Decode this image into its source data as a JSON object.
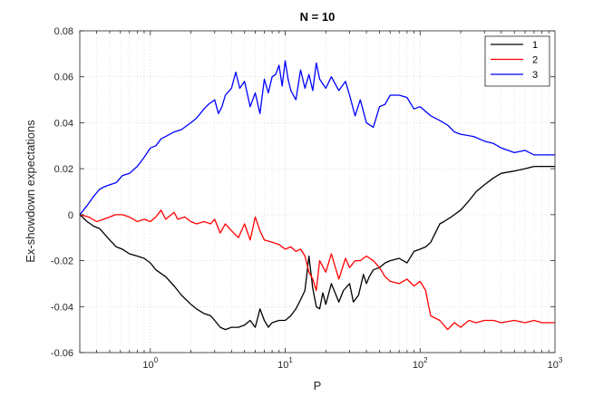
{
  "chart_data": {
    "type": "line",
    "title": "N = 10",
    "xlabel": "P",
    "ylabel": "Ex-showdown expectations",
    "xscale": "log",
    "xlim": [
      0.3,
      1000
    ],
    "ylim": [
      -0.06,
      0.08
    ],
    "xticks": [
      {
        "value": 1,
        "base": "10",
        "exp": "0"
      },
      {
        "value": 10,
        "base": "10",
        "exp": "1"
      },
      {
        "value": 100,
        "base": "10",
        "exp": "2"
      },
      {
        "value": 1000,
        "base": "10",
        "exp": "3"
      }
    ],
    "yticks": [
      {
        "value": -0.06,
        "label": "-0.06"
      },
      {
        "value": -0.04,
        "label": "-0.04"
      },
      {
        "value": -0.02,
        "label": "-0.02"
      },
      {
        "value": 0,
        "label": "0"
      },
      {
        "value": 0.02,
        "label": "0.02"
      },
      {
        "value": 0.04,
        "label": "0.04"
      },
      {
        "value": 0.06,
        "label": "0.06"
      },
      {
        "value": 0.08,
        "label": "0.08"
      }
    ],
    "grid": true,
    "legend_position": "top-right",
    "series": [
      {
        "name": "1",
        "color": "#000000",
        "points": [
          [
            0.3,
            0.0
          ],
          [
            0.34,
            -0.003
          ],
          [
            0.38,
            -0.005
          ],
          [
            0.42,
            -0.006
          ],
          [
            0.45,
            -0.008
          ],
          [
            0.5,
            -0.011
          ],
          [
            0.56,
            -0.014
          ],
          [
            0.62,
            -0.015
          ],
          [
            0.7,
            -0.017
          ],
          [
            0.8,
            -0.018
          ],
          [
            0.9,
            -0.019
          ],
          [
            1.0,
            -0.021
          ],
          [
            1.1,
            -0.024
          ],
          [
            1.3,
            -0.027
          ],
          [
            1.5,
            -0.031
          ],
          [
            1.7,
            -0.035
          ],
          [
            2.0,
            -0.039
          ],
          [
            2.2,
            -0.041
          ],
          [
            2.5,
            -0.043
          ],
          [
            2.8,
            -0.044
          ],
          [
            3.0,
            -0.046
          ],
          [
            3.3,
            -0.049
          ],
          [
            3.6,
            -0.05
          ],
          [
            4.0,
            -0.049
          ],
          [
            4.5,
            -0.049
          ],
          [
            5.0,
            -0.048
          ],
          [
            5.5,
            -0.046
          ],
          [
            6.0,
            -0.049
          ],
          [
            6.5,
            -0.041
          ],
          [
            7.0,
            -0.046
          ],
          [
            7.5,
            -0.049
          ],
          [
            8.0,
            -0.047
          ],
          [
            9.0,
            -0.046
          ],
          [
            10.0,
            -0.046
          ],
          [
            11.0,
            -0.044
          ],
          [
            12.0,
            -0.041
          ],
          [
            13.0,
            -0.037
          ],
          [
            14.0,
            -0.033
          ],
          [
            15.0,
            -0.018
          ],
          [
            16.0,
            -0.032
          ],
          [
            17.0,
            -0.04
          ],
          [
            18.0,
            -0.041
          ],
          [
            19.0,
            -0.034
          ],
          [
            20.0,
            -0.039
          ],
          [
            22.0,
            -0.03
          ],
          [
            25.0,
            -0.038
          ],
          [
            27.0,
            -0.033
          ],
          [
            30.0,
            -0.03
          ],
          [
            32.0,
            -0.038
          ],
          [
            35.0,
            -0.035
          ],
          [
            38.0,
            -0.026
          ],
          [
            40.0,
            -0.03
          ],
          [
            42.0,
            -0.027
          ],
          [
            45.0,
            -0.024
          ],
          [
            50.0,
            -0.023
          ],
          [
            55.0,
            -0.021
          ],
          [
            60.0,
            -0.02
          ],
          [
            70.0,
            -0.019
          ],
          [
            80.0,
            -0.021
          ],
          [
            90.0,
            -0.016
          ],
          [
            100.0,
            -0.015
          ],
          [
            110.0,
            -0.014
          ],
          [
            120.0,
            -0.012
          ],
          [
            140.0,
            -0.004
          ],
          [
            150.0,
            -0.003
          ],
          [
            170.0,
            -0.001
          ],
          [
            200.0,
            0.002
          ],
          [
            230.0,
            0.006
          ],
          [
            260.0,
            0.01
          ],
          [
            300.0,
            0.013
          ],
          [
            350.0,
            0.016
          ],
          [
            400.0,
            0.018
          ],
          [
            500.0,
            0.019
          ],
          [
            600.0,
            0.02
          ],
          [
            700.0,
            0.021
          ],
          [
            850.0,
            0.021
          ],
          [
            1000.0,
            0.021
          ]
        ]
      },
      {
        "name": "2",
        "color": "#ff0000",
        "points": [
          [
            0.3,
            0.0
          ],
          [
            0.35,
            -0.001
          ],
          [
            0.4,
            -0.003
          ],
          [
            0.45,
            -0.002
          ],
          [
            0.5,
            -0.001
          ],
          [
            0.55,
            0.0
          ],
          [
            0.62,
            0.0
          ],
          [
            0.7,
            -0.001
          ],
          [
            0.8,
            -0.003
          ],
          [
            0.9,
            -0.002
          ],
          [
            1.0,
            -0.003
          ],
          [
            1.1,
            -0.001
          ],
          [
            1.2,
            0.002
          ],
          [
            1.3,
            -0.002
          ],
          [
            1.5,
            0.001
          ],
          [
            1.6,
            -0.002
          ],
          [
            1.8,
            -0.001
          ],
          [
            2.0,
            -0.003
          ],
          [
            2.2,
            -0.004
          ],
          [
            2.5,
            -0.003
          ],
          [
            2.8,
            -0.004
          ],
          [
            3.0,
            -0.002
          ],
          [
            3.3,
            -0.008
          ],
          [
            3.6,
            -0.004
          ],
          [
            4.0,
            -0.007
          ],
          [
            4.5,
            -0.01
          ],
          [
            5.0,
            -0.004
          ],
          [
            5.5,
            -0.011
          ],
          [
            6.0,
            -0.001
          ],
          [
            6.5,
            -0.007
          ],
          [
            7.0,
            -0.011
          ],
          [
            8.0,
            -0.012
          ],
          [
            9.0,
            -0.013
          ],
          [
            10.0,
            -0.015
          ],
          [
            11.0,
            -0.014
          ],
          [
            12.0,
            -0.016
          ],
          [
            13.0,
            -0.015
          ],
          [
            14.0,
            -0.018
          ],
          [
            15.0,
            -0.025
          ],
          [
            16.0,
            -0.028
          ],
          [
            17.0,
            -0.033
          ],
          [
            18.0,
            -0.02
          ],
          [
            20.0,
            -0.025
          ],
          [
            22.0,
            -0.017
          ],
          [
            25.0,
            -0.028
          ],
          [
            28.0,
            -0.019
          ],
          [
            30.0,
            -0.023
          ],
          [
            33.0,
            -0.02
          ],
          [
            36.0,
            -0.02
          ],
          [
            40.0,
            -0.018
          ],
          [
            45.0,
            -0.02
          ],
          [
            50.0,
            -0.023
          ],
          [
            55.0,
            -0.027
          ],
          [
            60.0,
            -0.029
          ],
          [
            70.0,
            -0.03
          ],
          [
            80.0,
            -0.028
          ],
          [
            90.0,
            -0.031
          ],
          [
            100.0,
            -0.029
          ],
          [
            110.0,
            -0.033
          ],
          [
            115.0,
            -0.039
          ],
          [
            120.0,
            -0.044
          ],
          [
            140.0,
            -0.046
          ],
          [
            160.0,
            -0.05
          ],
          [
            180.0,
            -0.047
          ],
          [
            200.0,
            -0.049
          ],
          [
            230.0,
            -0.046
          ],
          [
            260.0,
            -0.047
          ],
          [
            300.0,
            -0.046
          ],
          [
            350.0,
            -0.046
          ],
          [
            400.0,
            -0.047
          ],
          [
            500.0,
            -0.046
          ],
          [
            600.0,
            -0.047
          ],
          [
            700.0,
            -0.046
          ],
          [
            800.0,
            -0.047
          ],
          [
            1000.0,
            -0.047
          ]
        ]
      },
      {
        "name": "3",
        "color": "#0000ff",
        "points": [
          [
            0.3,
            0.0
          ],
          [
            0.34,
            0.004
          ],
          [
            0.38,
            0.008
          ],
          [
            0.42,
            0.011
          ],
          [
            0.45,
            0.012
          ],
          [
            0.5,
            0.013
          ],
          [
            0.56,
            0.014
          ],
          [
            0.62,
            0.017
          ],
          [
            0.7,
            0.018
          ],
          [
            0.8,
            0.021
          ],
          [
            0.9,
            0.025
          ],
          [
            1.0,
            0.029
          ],
          [
            1.1,
            0.03
          ],
          [
            1.2,
            0.033
          ],
          [
            1.3,
            0.034
          ],
          [
            1.5,
            0.036
          ],
          [
            1.7,
            0.037
          ],
          [
            2.0,
            0.04
          ],
          [
            2.2,
            0.042
          ],
          [
            2.5,
            0.046
          ],
          [
            2.7,
            0.048
          ],
          [
            3.0,
            0.05
          ],
          [
            3.2,
            0.044
          ],
          [
            3.4,
            0.047
          ],
          [
            3.6,
            0.052
          ],
          [
            4.0,
            0.055
          ],
          [
            4.3,
            0.062
          ],
          [
            4.6,
            0.055
          ],
          [
            5.0,
            0.058
          ],
          [
            5.5,
            0.047
          ],
          [
            6.0,
            0.053
          ],
          [
            6.5,
            0.044
          ],
          [
            7.0,
            0.059
          ],
          [
            7.5,
            0.053
          ],
          [
            8.0,
            0.06
          ],
          [
            8.5,
            0.061
          ],
          [
            9.0,
            0.065
          ],
          [
            9.5,
            0.056
          ],
          [
            10.0,
            0.067
          ],
          [
            10.5,
            0.059
          ],
          [
            11.0,
            0.054
          ],
          [
            12.0,
            0.05
          ],
          [
            13.0,
            0.063
          ],
          [
            14.0,
            0.055
          ],
          [
            15.0,
            0.061
          ],
          [
            16.0,
            0.054
          ],
          [
            17.0,
            0.066
          ],
          [
            18.0,
            0.059
          ],
          [
            20.0,
            0.055
          ],
          [
            22.0,
            0.06
          ],
          [
            25.0,
            0.054
          ],
          [
            28.0,
            0.058
          ],
          [
            30.0,
            0.052
          ],
          [
            33.0,
            0.043
          ],
          [
            36.0,
            0.05
          ],
          [
            40.0,
            0.04
          ],
          [
            45.0,
            0.038
          ],
          [
            50.0,
            0.047
          ],
          [
            55.0,
            0.048
          ],
          [
            60.0,
            0.052
          ],
          [
            70.0,
            0.052
          ],
          [
            80.0,
            0.051
          ],
          [
            90.0,
            0.046
          ],
          [
            100.0,
            0.047
          ],
          [
            120.0,
            0.043
          ],
          [
            140.0,
            0.041
          ],
          [
            160.0,
            0.039
          ],
          [
            180.0,
            0.036
          ],
          [
            200.0,
            0.035
          ],
          [
            250.0,
            0.034
          ],
          [
            300.0,
            0.032
          ],
          [
            350.0,
            0.031
          ],
          [
            400.0,
            0.029
          ],
          [
            500.0,
            0.027
          ],
          [
            600.0,
            0.028
          ],
          [
            700.0,
            0.026
          ],
          [
            850.0,
            0.026
          ],
          [
            1000.0,
            0.026
          ]
        ]
      }
    ]
  }
}
